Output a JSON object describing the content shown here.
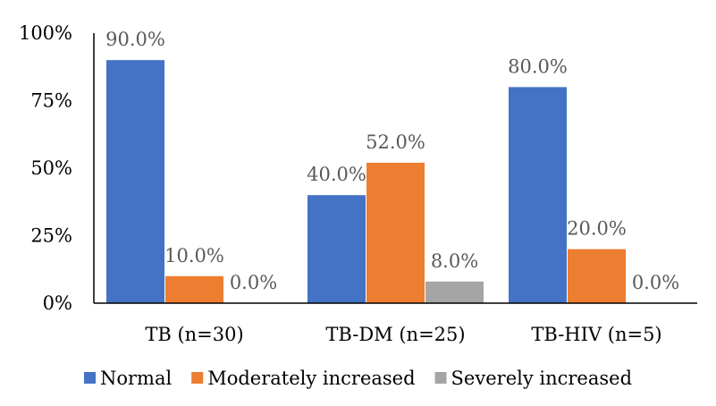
{
  "chart_data": {
    "type": "bar",
    "categories": [
      "TB (n=30)",
      "TB-DM (n=25)",
      "TB-HIV (n=5)"
    ],
    "series": [
      {
        "name": "Normal",
        "values": [
          90.0,
          40.0,
          80.0
        ],
        "labels": [
          "90.0%",
          "40.0%",
          "80.0%"
        ],
        "color": "#4472C4"
      },
      {
        "name": "Moderately increased",
        "values": [
          10.0,
          52.0,
          20.0
        ],
        "labels": [
          "10.0%",
          "52.0%",
          "20.0%"
        ],
        "color": "#ED7D31"
      },
      {
        "name": "Severely increased",
        "values": [
          0.0,
          8.0,
          0.0
        ],
        "labels": [
          "0.0%",
          "8.0%",
          "0.0%"
        ],
        "color": "#A5A5A5"
      }
    ],
    "y_ticks": [
      {
        "value": 0,
        "label": "0%"
      },
      {
        "value": 25,
        "label": "25%"
      },
      {
        "value": 50,
        "label": "50%"
      },
      {
        "value": 75,
        "label": "75%"
      },
      {
        "value": 100,
        "label": "100%"
      }
    ],
    "ylim": [
      0,
      100
    ],
    "grid": false,
    "legend_position": "bottom",
    "title": "",
    "xlabel": "",
    "ylabel": "",
    "data_label_color": "#595959"
  }
}
